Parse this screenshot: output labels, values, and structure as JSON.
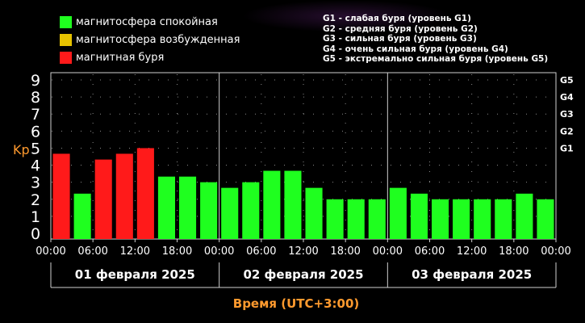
{
  "legend": [
    {
      "label": "магнитосфера спокойная",
      "color": "#1fff1f"
    },
    {
      "label": "магнитосфера возбужденная",
      "color": "#e6c200"
    },
    {
      "label": "магнитная буря",
      "color": "#ff1a1a"
    }
  ],
  "storm_levels": [
    "G1 - слабая буря (уровень G1)",
    "G2 - средняя буря (уровень G2)",
    "G3 - сильная буря (уровень G3)",
    "G4 - очень сильная буря (уровень G4)",
    "G5 - экстремально сильная буря (уровень G5)"
  ],
  "chart_data": {
    "type": "bar",
    "ylabel": "Kp",
    "xlabel": "Время (UTC+3:00)",
    "ylim": [
      0,
      9
    ],
    "yticks": [
      "0",
      "1",
      "2",
      "3",
      "4",
      "5",
      "6",
      "7",
      "8",
      "9"
    ],
    "right_ticks": [
      {
        "label": "G1",
        "value": 5
      },
      {
        "label": "G2",
        "value": 6
      },
      {
        "label": "G3",
        "value": 7
      },
      {
        "label": "G4",
        "value": 8
      },
      {
        "label": "G5",
        "value": 9
      }
    ],
    "time_ticks": [
      "00:00",
      "06:00",
      "12:00",
      "18:00",
      "00:00",
      "06:00",
      "12:00",
      "18:00",
      "00:00",
      "06:00",
      "12:00",
      "18:00",
      "00:00"
    ],
    "days": [
      "01 февраля 2025",
      "02 февраля 2025",
      "03 февраля 2025"
    ],
    "values": [
      4.67,
      2.33,
      4.33,
      4.67,
      5.0,
      3.33,
      3.33,
      3.0,
      2.67,
      3.0,
      3.67,
      3.67,
      2.67,
      2.0,
      2.0,
      2.0,
      2.67,
      2.33,
      2.0,
      2.0,
      2.0,
      2.0,
      2.33,
      2.0
    ],
    "colors": [
      "#ff1a1a",
      "#1fff1f",
      "#ff1a1a",
      "#ff1a1a",
      "#ff1a1a",
      "#1fff1f",
      "#1fff1f",
      "#1fff1f",
      "#1fff1f",
      "#1fff1f",
      "#1fff1f",
      "#1fff1f",
      "#1fff1f",
      "#1fff1f",
      "#1fff1f",
      "#1fff1f",
      "#1fff1f",
      "#1fff1f",
      "#1fff1f",
      "#1fff1f",
      "#1fff1f",
      "#1fff1f",
      "#1fff1f",
      "#1fff1f"
    ],
    "grid": "dotted",
    "label_color": "#ff9a2e"
  }
}
